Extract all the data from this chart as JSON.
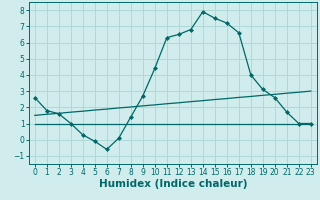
{
  "xlabel": "Humidex (Indice chaleur)",
  "bg_color": "#d0ecec",
  "grid_color": "#b0d8d8",
  "line_color": "#006868",
  "x_data": [
    0,
    1,
    2,
    3,
    4,
    5,
    6,
    7,
    8,
    9,
    10,
    11,
    12,
    13,
    14,
    15,
    16,
    17,
    18,
    19,
    20,
    21,
    22,
    23
  ],
  "y_curve": [
    2.6,
    1.8,
    1.6,
    1.0,
    0.3,
    -0.1,
    -0.6,
    0.1,
    1.4,
    2.7,
    4.4,
    6.3,
    6.5,
    6.8,
    7.9,
    7.5,
    7.2,
    6.6,
    4.0,
    3.1,
    2.6,
    1.7,
    1.0,
    1.0
  ],
  "y_linear1": [
    1.5,
    1.57,
    1.63,
    1.7,
    1.76,
    1.83,
    1.89,
    1.96,
    2.02,
    2.09,
    2.15,
    2.22,
    2.28,
    2.35,
    2.41,
    2.48,
    2.54,
    2.61,
    2.67,
    2.74,
    2.8,
    2.87,
    2.93,
    3.0
  ],
  "y_flat": [
    1.0,
    1.0,
    1.0,
    1.0,
    1.0,
    1.0,
    1.0,
    1.0,
    1.0,
    1.0,
    1.0,
    1.0,
    1.0,
    1.0,
    1.0,
    1.0,
    1.0,
    1.0,
    1.0,
    1.0,
    1.0,
    1.0,
    1.0,
    1.0
  ],
  "ylim": [
    -1.5,
    8.5
  ],
  "xlim": [
    -0.5,
    23.5
  ],
  "yticks": [
    -1,
    0,
    1,
    2,
    3,
    4,
    5,
    6,
    7,
    8
  ],
  "xticks": [
    0,
    1,
    2,
    3,
    4,
    5,
    6,
    7,
    8,
    9,
    10,
    11,
    12,
    13,
    14,
    15,
    16,
    17,
    18,
    19,
    20,
    21,
    22,
    23
  ],
  "tick_fontsize": 5.5,
  "xlabel_fontsize": 7.5
}
